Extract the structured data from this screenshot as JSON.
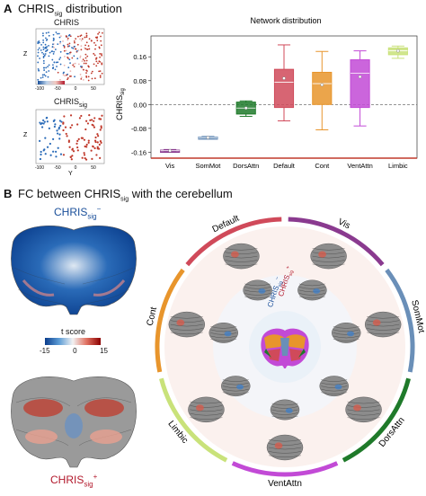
{
  "panel_a": {
    "letter": "A",
    "title_main": "CHRIS",
    "title_sub": "sig",
    "title_rest": " distribution",
    "embed_top": {
      "title": "CHRIS",
      "ylabel": "Z",
      "xticks": [
        "-100",
        "-50",
        "0",
        "50"
      ],
      "yticks": [
        "20",
        "0",
        "-20",
        "-40"
      ]
    },
    "embed_bottom": {
      "title_main": "CHRIS",
      "title_sub": "sig",
      "ylabel": "Z",
      "xlabel": "Y",
      "xticks": [
        "-100",
        "-50",
        "0",
        "50"
      ],
      "yticks": [
        "20",
        "0",
        "-20",
        "-40"
      ]
    }
  },
  "panel_b": {
    "letter": "B",
    "title_pre": "FC between CHRIS",
    "title_sub": "sig",
    "title_post": " with the cerebellum",
    "neg_label_main": "CHRIS",
    "neg_label_sub": "sig",
    "neg_label_sup": "−",
    "pos_label_main": "CHRIS",
    "pos_label_sub": "sig",
    "pos_label_sup": "+",
    "colorbar": {
      "title": "t score",
      "ticks": [
        "-15",
        "0",
        "15"
      ],
      "colors": [
        "#0a3d8c",
        "#5b9bd5",
        "#f2f2f2",
        "#e07060",
        "#8b0000"
      ]
    },
    "ring_labels": [
      {
        "text": "Default",
        "color": "#d04a5a"
      },
      {
        "text": "Vis",
        "color": "#8a3a8f"
      },
      {
        "text": "SomMot",
        "color": "#6a8fb8"
      },
      {
        "text": "DorsAttn",
        "color": "#1f7a2a"
      },
      {
        "text": "VentAttn",
        "color": "#c24ad6"
      },
      {
        "text": "Limbic",
        "color": "#c9e27a"
      },
      {
        "text": "Cont",
        "color": "#e8952c"
      }
    ],
    "inner_neg_main": "CHRIS",
    "inner_neg_sub": "sig",
    "inner_neg_sup": "−",
    "inner_pos_main": "CHRIS",
    "inner_pos_sub": "sig",
    "inner_pos_sup": "+"
  },
  "chart_data": {
    "type": "box",
    "title": "Network distribution",
    "ylabel": "CHRIS",
    "ylabel_sub": "sig",
    "ylim": [
      -0.18,
      0.23
    ],
    "yticks": [
      -0.16,
      -0.08,
      0.0,
      0.08,
      0.16
    ],
    "ytick_labels": [
      "-0.16",
      "-0.08",
      "0.00",
      "0.08",
      "0.16"
    ],
    "zero_line": "dashed",
    "categories": [
      "Vis",
      "SomMot",
      "DorsAttn",
      "Default",
      "Cont",
      "VentAttn",
      "Limbic"
    ],
    "colors": [
      "#8a3a8f",
      "#6a8fb8",
      "#1f7a2a",
      "#d04a5a",
      "#e8952c",
      "#c24ad6",
      "#c9e27a"
    ],
    "boxes": [
      {
        "category": "Vis",
        "min": -0.158,
        "q1": -0.156,
        "median": -0.155,
        "q3": -0.153,
        "max": -0.151,
        "mean": -0.155
      },
      {
        "category": "SomMot",
        "min": -0.115,
        "q1": -0.112,
        "median": -0.111,
        "q3": -0.109,
        "max": -0.107,
        "mean": -0.111
      },
      {
        "category": "DorsAttn",
        "min": -0.04,
        "q1": -0.032,
        "median": -0.012,
        "q3": 0.008,
        "max": 0.012,
        "mean": -0.012
      },
      {
        "category": "Default",
        "min": -0.055,
        "q1": -0.01,
        "median": 0.075,
        "q3": 0.118,
        "max": 0.2,
        "mean": 0.088
      },
      {
        "category": "Cont",
        "min": -0.085,
        "q1": 0.0,
        "median": 0.07,
        "q3": 0.108,
        "max": 0.178,
        "mean": 0.066
      },
      {
        "category": "VentAttn",
        "min": -0.072,
        "q1": -0.01,
        "median": 0.105,
        "q3": 0.15,
        "max": 0.18,
        "mean": 0.093
      },
      {
        "category": "Limbic",
        "min": 0.155,
        "q1": 0.167,
        "median": 0.18,
        "q3": 0.19,
        "max": 0.196,
        "mean": 0.18
      }
    ]
  }
}
